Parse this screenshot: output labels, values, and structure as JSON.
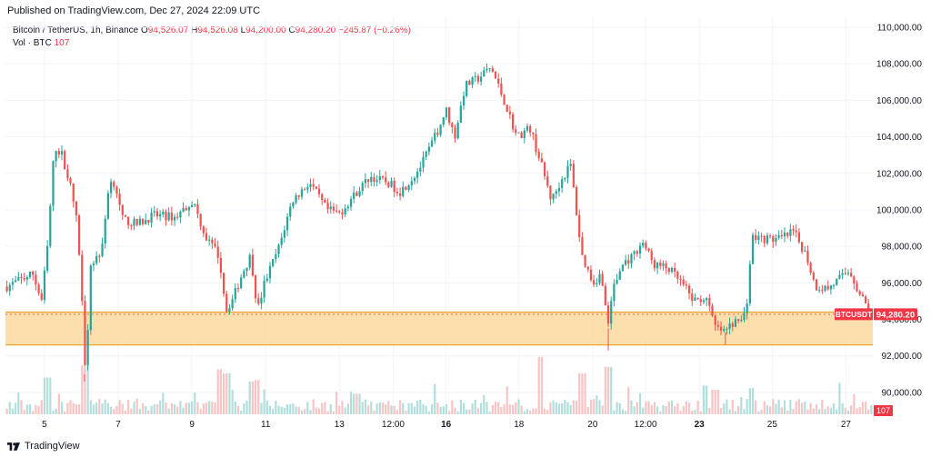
{
  "header": {
    "published": "Published on TradingView.com, Dec 27, 2024 22:09 UTC"
  },
  "legend": {
    "symbol": "Bitcoin / TetherUS, 1h, Binance",
    "open_label": "O",
    "open": "94,526.07",
    "high_label": "H",
    "high": "94,526.08",
    "low_label": "L",
    "low": "94,200.00",
    "close_label": "C",
    "close": "94,280.20",
    "change": "−245.87 (−0.26%)",
    "vol_label": "Vol · BTC",
    "vol_value": "107"
  },
  "footer": {
    "brand": "TradingView"
  },
  "colors": {
    "up": "#26a69a",
    "down": "#ef5350",
    "zone_fill": "#fdd9a0",
    "zone_line": "#f0a52c",
    "price_tag": "#f23645",
    "vol_up": "#b2dfdb",
    "vol_down": "#f7c5c5"
  },
  "chart_data": {
    "type": "candlestick",
    "symbol": "BTCUSDT",
    "interval": "1h",
    "ylim": [
      88800,
      110600
    ],
    "yticks": [
      {
        "value": 110000,
        "label": "110,000.00"
      },
      {
        "value": 108000,
        "label": "108,000.00"
      },
      {
        "value": 106000,
        "label": "106,000.00"
      },
      {
        "value": 104000,
        "label": "104,000.00"
      },
      {
        "value": 102000,
        "label": "102,000.00"
      },
      {
        "value": 100000,
        "label": "100,000.00"
      },
      {
        "value": 98000,
        "label": "98,000.00"
      },
      {
        "value": 96000,
        "label": "96,000.00"
      },
      {
        "value": 94000,
        "label": "94,000.00"
      },
      {
        "value": 92000,
        "label": "92,000.00"
      },
      {
        "value": 90000,
        "label": "90,000.00"
      }
    ],
    "xticks": [
      {
        "pos": 0.045,
        "label": "5",
        "bold": false
      },
      {
        "pos": 0.13,
        "label": "7",
        "bold": false
      },
      {
        "pos": 0.215,
        "label": "9",
        "bold": false
      },
      {
        "pos": 0.3,
        "label": "11",
        "bold": false
      },
      {
        "pos": 0.385,
        "label": "13",
        "bold": false
      },
      {
        "pos": 0.447,
        "label": "12:00",
        "bold": false
      },
      {
        "pos": 0.508,
        "label": "16",
        "bold": true
      },
      {
        "pos": 0.592,
        "label": "18",
        "bold": false
      },
      {
        "pos": 0.677,
        "label": "20",
        "bold": false
      },
      {
        "pos": 0.738,
        "label": "12:00",
        "bold": false
      },
      {
        "pos": 0.8,
        "label": "23",
        "bold": true
      },
      {
        "pos": 0.884,
        "label": "25",
        "bold": false
      },
      {
        "pos": 0.969,
        "label": "27",
        "bold": false
      }
    ],
    "keypoints": [
      [
        0.0,
        95800
      ],
      [
        0.03,
        96500
      ],
      [
        0.04,
        95000
      ],
      [
        0.047,
        98000
      ],
      [
        0.055,
        103500
      ],
      [
        0.064,
        103000
      ],
      [
        0.075,
        101000
      ],
      [
        0.082,
        99000
      ],
      [
        0.088,
        94000
      ],
      [
        0.091,
        91000
      ],
      [
        0.097,
        97000
      ],
      [
        0.11,
        97800
      ],
      [
        0.118,
        101500
      ],
      [
        0.125,
        101500
      ],
      [
        0.133,
        99500
      ],
      [
        0.15,
        99200
      ],
      [
        0.17,
        99700
      ],
      [
        0.195,
        99600
      ],
      [
        0.215,
        100500
      ],
      [
        0.23,
        98500
      ],
      [
        0.245,
        97500
      ],
      [
        0.254,
        94500
      ],
      [
        0.262,
        95200
      ],
      [
        0.272,
        96500
      ],
      [
        0.282,
        97500
      ],
      [
        0.29,
        94500
      ],
      [
        0.298,
        96000
      ],
      [
        0.315,
        98000
      ],
      [
        0.33,
        100500
      ],
      [
        0.35,
        101500
      ],
      [
        0.37,
        100000
      ],
      [
        0.385,
        99800
      ],
      [
        0.405,
        101000
      ],
      [
        0.42,
        101800
      ],
      [
        0.44,
        101500
      ],
      [
        0.455,
        101000
      ],
      [
        0.47,
        101800
      ],
      [
        0.48,
        102500
      ],
      [
        0.49,
        103500
      ],
      [
        0.5,
        104500
      ],
      [
        0.508,
        105500
      ],
      [
        0.518,
        104000
      ],
      [
        0.53,
        106800
      ],
      [
        0.545,
        107200
      ],
      [
        0.56,
        107800
      ],
      [
        0.575,
        106000
      ],
      [
        0.59,
        104000
      ],
      [
        0.605,
        104500
      ],
      [
        0.618,
        102500
      ],
      [
        0.63,
        100500
      ],
      [
        0.64,
        101500
      ],
      [
        0.652,
        102500
      ],
      [
        0.665,
        97500
      ],
      [
        0.678,
        96000
      ],
      [
        0.688,
        96500
      ],
      [
        0.695,
        93500
      ],
      [
        0.7,
        95500
      ],
      [
        0.712,
        97000
      ],
      [
        0.725,
        97500
      ],
      [
        0.735,
        98300
      ],
      [
        0.748,
        97000
      ],
      [
        0.765,
        96800
      ],
      [
        0.78,
        96000
      ],
      [
        0.795,
        95000
      ],
      [
        0.808,
        95200
      ],
      [
        0.82,
        93500
      ],
      [
        0.83,
        93300
      ],
      [
        0.84,
        93800
      ],
      [
        0.848,
        93900
      ],
      [
        0.855,
        94400
      ],
      [
        0.862,
        98500
      ],
      [
        0.878,
        98400
      ],
      [
        0.895,
        98400
      ],
      [
        0.91,
        98800
      ],
      [
        0.925,
        97500
      ],
      [
        0.935,
        95800
      ],
      [
        0.95,
        95700
      ],
      [
        0.965,
        96300
      ],
      [
        0.975,
        96700
      ],
      [
        0.985,
        95500
      ],
      [
        1.0,
        94280
      ]
    ],
    "support_zone": [
      92600,
      94400
    ],
    "last_price": 94280.2,
    "last_price_label": "94,280.20",
    "price_tag_label": "BTCUSDT",
    "volume_last_label": "107",
    "volume_spikes": [
      [
        0.047,
        0.45
      ],
      [
        0.088,
        0.6
      ],
      [
        0.091,
        0.75
      ],
      [
        0.245,
        0.55
      ],
      [
        0.254,
        0.5
      ],
      [
        0.282,
        0.4
      ],
      [
        0.29,
        0.42
      ],
      [
        0.405,
        0.25
      ],
      [
        0.618,
        0.7
      ],
      [
        0.665,
        0.5
      ],
      [
        0.695,
        0.58
      ],
      [
        0.808,
        0.35
      ],
      [
        0.82,
        0.3
      ],
      [
        0.862,
        0.32
      ]
    ]
  }
}
